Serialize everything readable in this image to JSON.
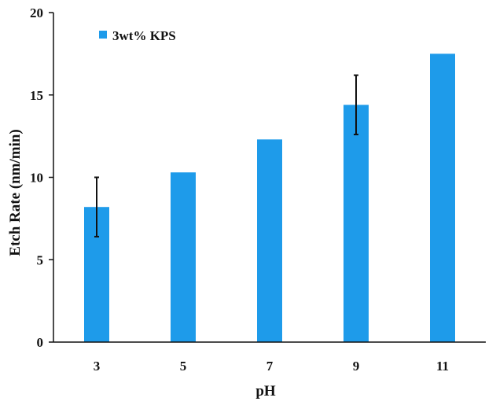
{
  "colors": {
    "bar": "#1E9BEA",
    "axis": "#111111",
    "error_bar": "#111111",
    "background": "#FFFFFF"
  },
  "chart_data": {
    "type": "bar",
    "title": "",
    "xlabel": "pH",
    "ylabel": "Etch Rate (nm/min)",
    "categories": [
      "3",
      "5",
      "7",
      "9",
      "11"
    ],
    "series": [
      {
        "name": "3wt% KPS",
        "values": [
          8.2,
          10.3,
          12.3,
          14.4,
          17.5
        ],
        "error_low": [
          6.4,
          null,
          null,
          12.6,
          null
        ],
        "error_high": [
          10.0,
          null,
          null,
          16.2,
          null
        ]
      }
    ],
    "ylim": [
      0,
      20
    ],
    "yticks": [
      "0",
      "5",
      "10",
      "15",
      "20"
    ],
    "grid": false,
    "legend_position": "top-left"
  }
}
